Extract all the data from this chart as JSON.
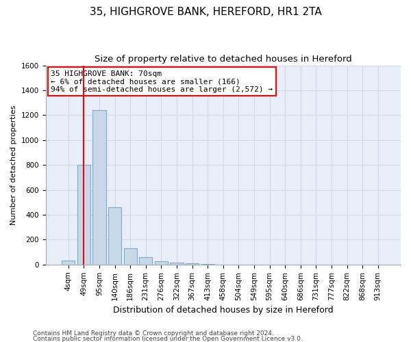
{
  "title_line1": "35, HIGHGROVE BANK, HEREFORD, HR1 2TA",
  "title_line2": "Size of property relative to detached houses in Hereford",
  "xlabel": "Distribution of detached houses by size in Hereford",
  "ylabel": "Number of detached properties",
  "footer_line1": "Contains HM Land Registry data © Crown copyright and database right 2024.",
  "footer_line2": "Contains public sector information licensed under the Open Government Licence v3.0.",
  "categories": [
    "4sqm",
    "49sqm",
    "95sqm",
    "140sqm",
    "186sqm",
    "231sqm",
    "276sqm",
    "322sqm",
    "367sqm",
    "413sqm",
    "458sqm",
    "504sqm",
    "549sqm",
    "595sqm",
    "640sqm",
    "686sqm",
    "731sqm",
    "777sqm",
    "822sqm",
    "868sqm",
    "913sqm"
  ],
  "values": [
    30,
    800,
    1240,
    460,
    130,
    60,
    25,
    15,
    10,
    5,
    0,
    0,
    0,
    0,
    0,
    0,
    0,
    0,
    0,
    0,
    0
  ],
  "bar_color": "#c8d8e8",
  "bar_edge_color": "#7aaac8",
  "bar_edge_width": 0.8,
  "ylim": [
    0,
    1600
  ],
  "yticks": [
    0,
    200,
    400,
    600,
    800,
    1000,
    1200,
    1400,
    1600
  ],
  "grid_color": "#d0d8e8",
  "background_color": "#e8eef8",
  "annotation_line1": "35 HIGHGROVE BANK: 70sqm",
  "annotation_line2": "← 6% of detached houses are smaller (166)",
  "annotation_line3": "94% of semi-detached houses are larger (2,572) →",
  "annotation_box_color": "white",
  "annotation_box_edge_color": "red",
  "red_line_x": 1.0,
  "title_fontsize": 11,
  "subtitle_fontsize": 9.5,
  "xlabel_fontsize": 9,
  "ylabel_fontsize": 8,
  "tick_fontsize": 7.5,
  "annotation_fontsize": 8,
  "footer_fontsize": 6.5
}
